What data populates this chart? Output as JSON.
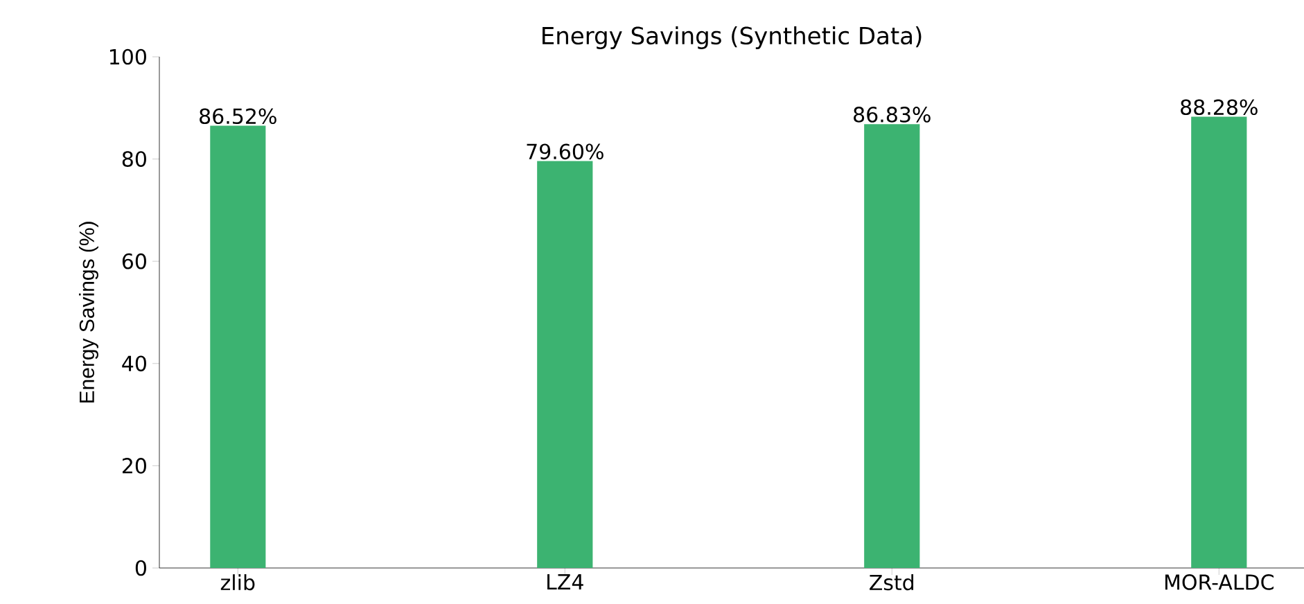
{
  "chart_data": {
    "type": "bar",
    "title": "Energy Savings (Synthetic Data)",
    "ylabel": "Energy Savings (%)",
    "categories": [
      "zlib",
      "LZ4",
      "Zstd",
      "MOR-ALDC"
    ],
    "values": [
      86.52,
      79.6,
      86.83,
      88.28
    ],
    "value_labels": [
      "86.52%",
      "79.60%",
      "86.83%",
      "88.28%"
    ],
    "color": "#3cb371",
    "ylim": [
      0,
      100
    ],
    "yticks": [
      0,
      20,
      40,
      60,
      80,
      100
    ]
  }
}
